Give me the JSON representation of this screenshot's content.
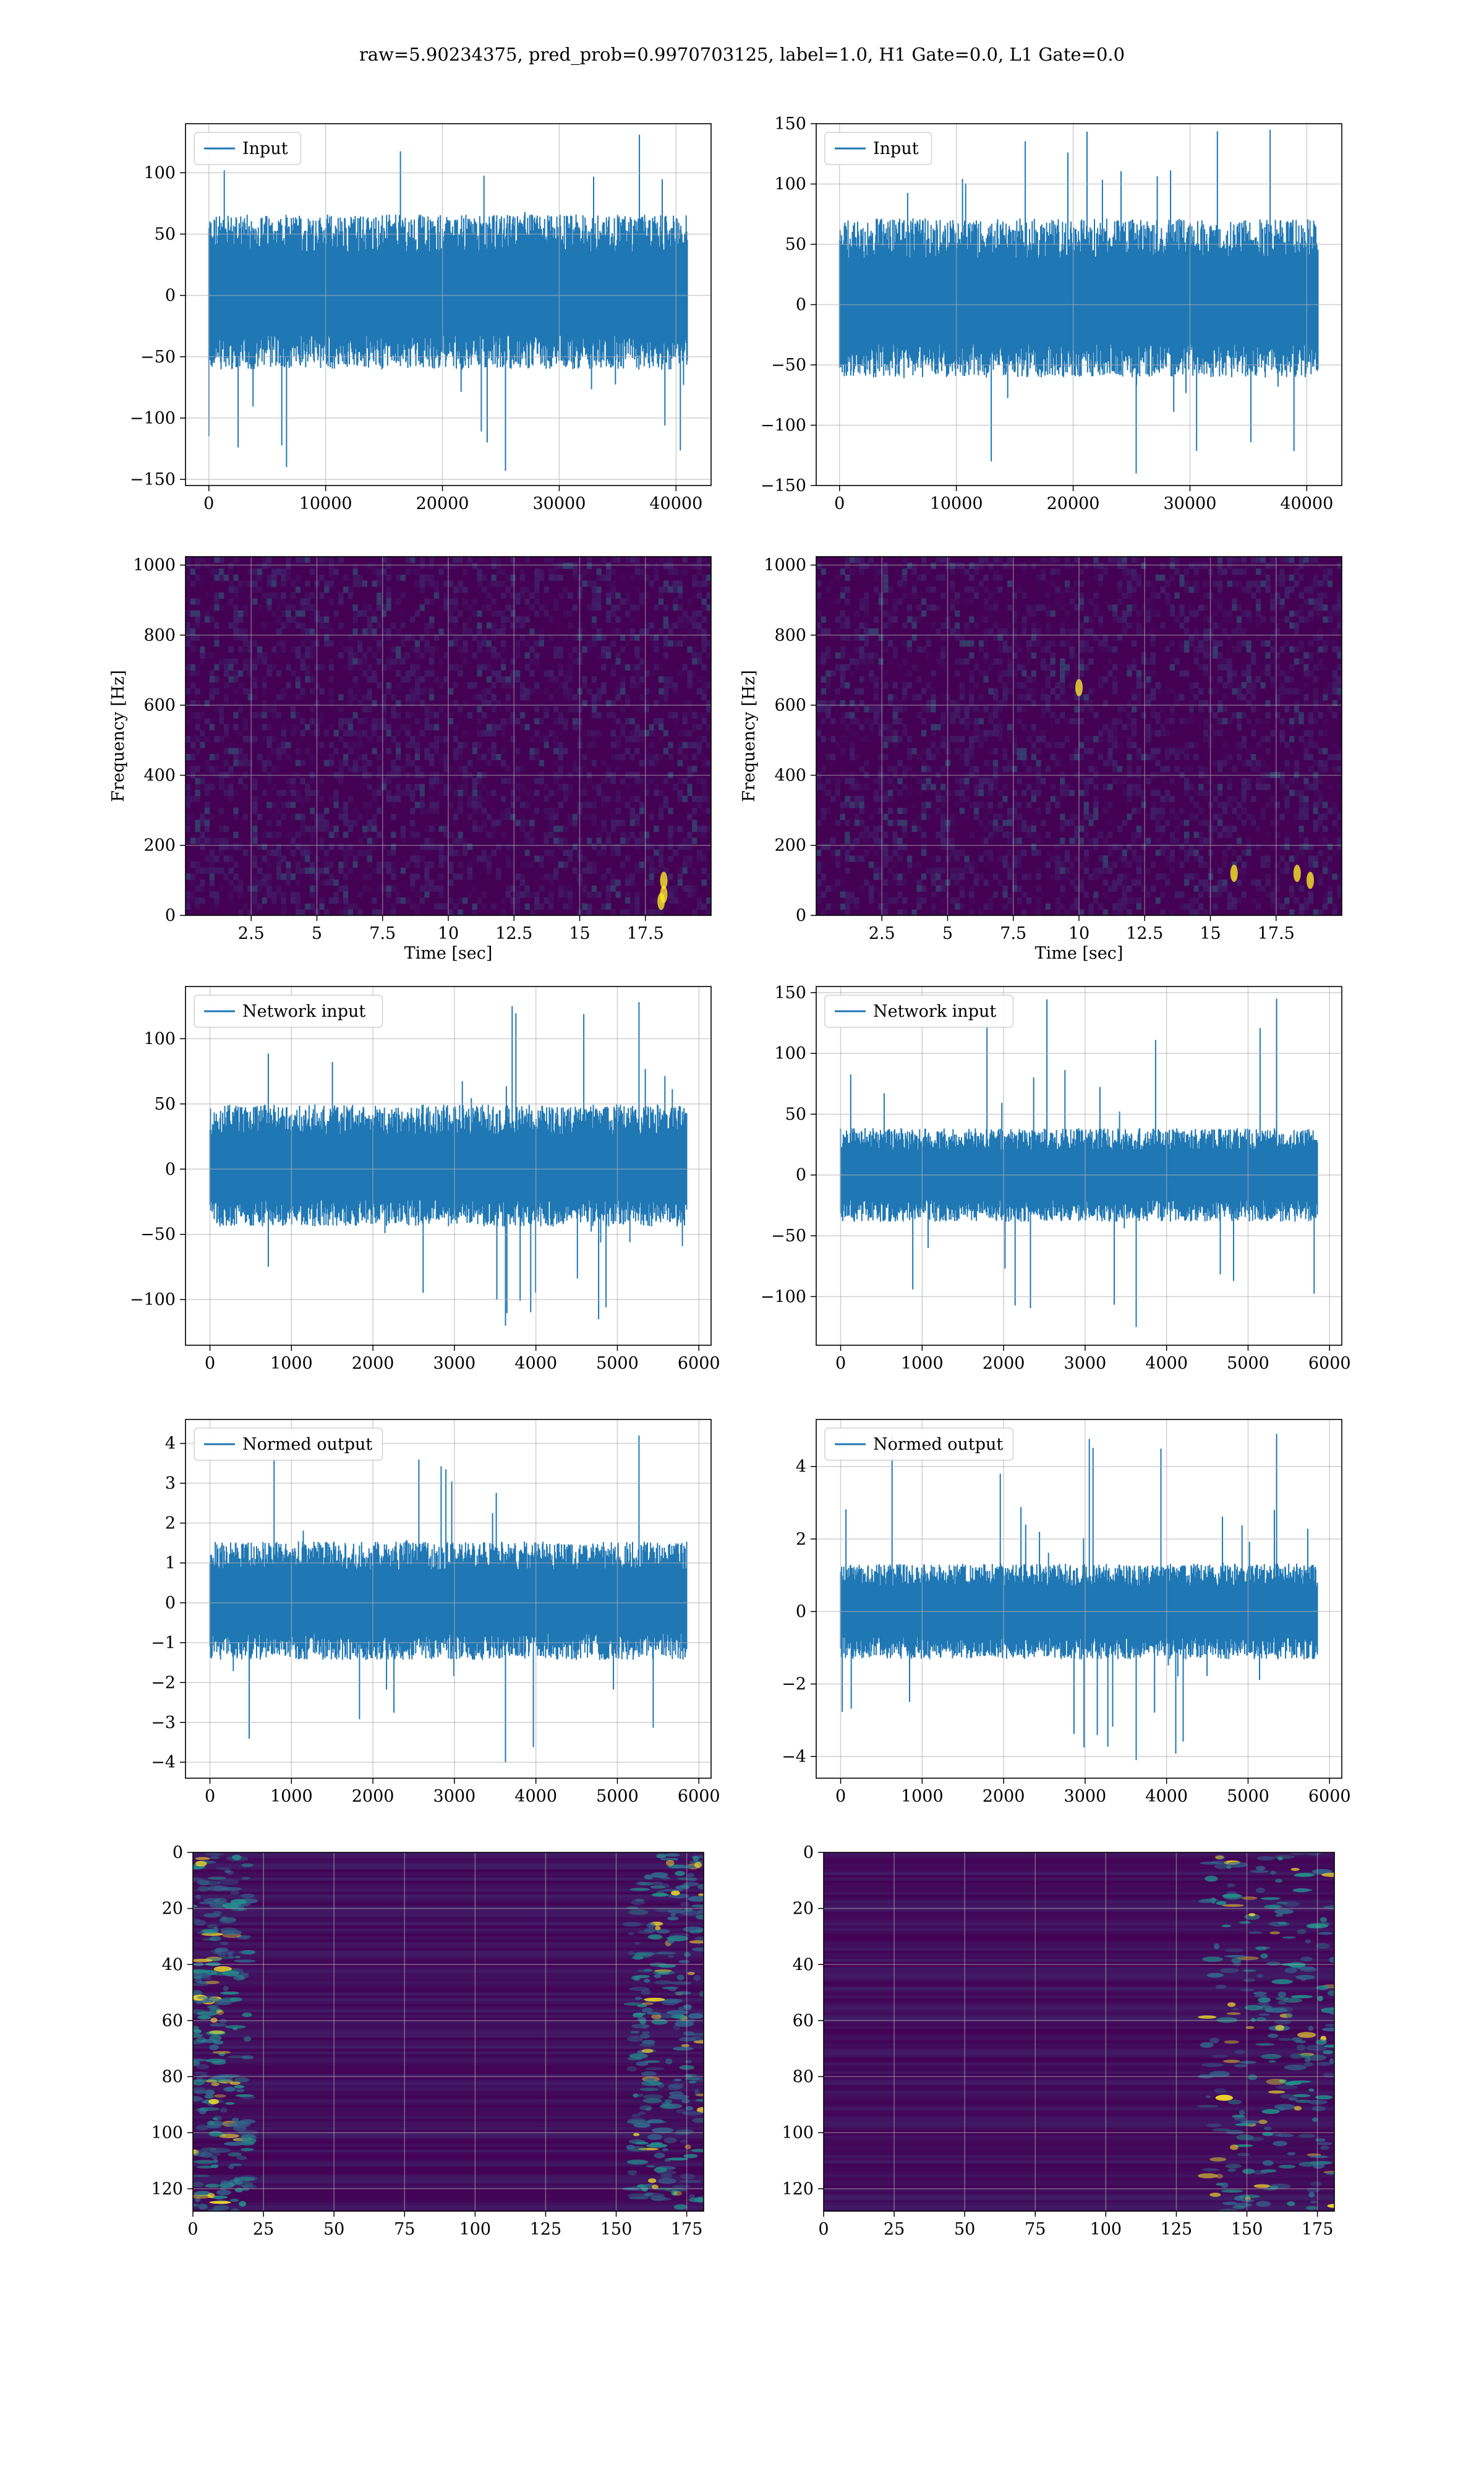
{
  "figure": {
    "suptitle": "raw=5.90234375, pred_prob=0.9970703125, label=1.0, H1 Gate=0.0, L1 Gate=0.0"
  },
  "colors": {
    "line": "#1f77b4",
    "viridis_dark": "#440154",
    "viridis_mid": "#21918c",
    "viridis_bright": "#fde725",
    "grid": "#b0b0b0"
  },
  "chart_data": [
    {
      "id": "input-h1",
      "type": "line",
      "legend": [
        "Input"
      ],
      "xlim": [
        -2000,
        43000
      ],
      "ylim": [
        -155,
        140
      ],
      "xticks": [
        0,
        10000,
        20000,
        30000,
        40000
      ],
      "yticks": [
        -150,
        -100,
        -50,
        0,
        50,
        100
      ],
      "series": [
        {
          "name": "Input",
          "x_range": [
            0,
            40960
          ],
          "band": [
            -55,
            60
          ],
          "peak_max": 131,
          "peak_min": -143
        }
      ]
    },
    {
      "id": "input-l1",
      "type": "line",
      "legend": [
        "Input"
      ],
      "xlim": [
        -2000,
        43000
      ],
      "ylim": [
        -150,
        150
      ],
      "xticks": [
        0,
        10000,
        20000,
        30000,
        40000
      ],
      "yticks": [
        -150,
        -100,
        -50,
        0,
        50,
        100,
        150
      ],
      "series": [
        {
          "name": "Input",
          "x_range": [
            0,
            40960
          ],
          "band": [
            -55,
            65
          ],
          "peak_max": 145,
          "peak_min": -140
        }
      ]
    },
    {
      "id": "spectrogram-h1",
      "type": "heatmap",
      "xlabel": "Time [sec]",
      "ylabel": "Frequency [Hz]",
      "xlim": [
        0,
        20
      ],
      "ylim": [
        0,
        1024
      ],
      "xticks": [
        2.5,
        5.0,
        7.5,
        10.0,
        12.5,
        15.0,
        17.5
      ],
      "yticks": [
        0,
        200,
        400,
        600,
        800,
        1000
      ],
      "hot_spots": [
        {
          "t": 18.2,
          "f": 60
        },
        {
          "t": 18.2,
          "f": 100
        },
        {
          "t": 18.1,
          "f": 40
        }
      ]
    },
    {
      "id": "spectrogram-l1",
      "type": "heatmap",
      "xlabel": "Time [sec]",
      "ylabel": "Frequency [Hz]",
      "xlim": [
        0,
        20
      ],
      "ylim": [
        0,
        1024
      ],
      "xticks": [
        2.5,
        5.0,
        7.5,
        10.0,
        12.5,
        15.0,
        17.5
      ],
      "yticks": [
        0,
        200,
        400,
        600,
        800,
        1000
      ],
      "hot_spots": [
        {
          "t": 18.3,
          "f": 120
        },
        {
          "t": 18.8,
          "f": 100
        },
        {
          "t": 15.9,
          "f": 120
        },
        {
          "t": 10.0,
          "f": 650
        }
      ]
    },
    {
      "id": "network-input-h1",
      "type": "line",
      "legend": [
        "Network input"
      ],
      "xlim": [
        -300,
        6150
      ],
      "ylim": [
        -135,
        140
      ],
      "xticks": [
        0,
        1000,
        2000,
        3000,
        4000,
        5000,
        6000
      ],
      "yticks": [
        -100,
        -50,
        0,
        50,
        100
      ],
      "series": [
        {
          "name": "Network input",
          "x_range": [
            0,
            5850
          ],
          "band": [
            -40,
            45
          ],
          "peak_max": 128,
          "peak_min": -120
        }
      ]
    },
    {
      "id": "network-input-l1",
      "type": "line",
      "legend": [
        "Network input"
      ],
      "xlim": [
        -300,
        6150
      ],
      "ylim": [
        -140,
        155
      ],
      "xticks": [
        0,
        1000,
        2000,
        3000,
        4000,
        5000,
        6000
      ],
      "yticks": [
        -100,
        -50,
        0,
        50,
        100,
        150
      ],
      "series": [
        {
          "name": "Network input",
          "x_range": [
            0,
            5850
          ],
          "band": [
            -35,
            35
          ],
          "peak_max": 145,
          "peak_min": -125,
          "peak_at": 5350
        }
      ]
    },
    {
      "id": "normed-output-h1",
      "type": "line",
      "legend": [
        "Normed output"
      ],
      "xlim": [
        -300,
        6150
      ],
      "ylim": [
        -4.4,
        4.6
      ],
      "xticks": [
        0,
        1000,
        2000,
        3000,
        4000,
        5000,
        6000
      ],
      "yticks": [
        -4,
        -3,
        -2,
        -1,
        0,
        1,
        2,
        3,
        4
      ],
      "series": [
        {
          "name": "Normed output",
          "x_range": [
            0,
            5850
          ],
          "band": [
            -1.3,
            1.4
          ],
          "peak_max": 4.2,
          "peak_min": -4.0
        }
      ]
    },
    {
      "id": "normed-output-l1",
      "type": "line",
      "legend": [
        "Normed output"
      ],
      "xlim": [
        -300,
        6150
      ],
      "ylim": [
        -4.6,
        5.3
      ],
      "xticks": [
        0,
        1000,
        2000,
        3000,
        4000,
        5000,
        6000
      ],
      "yticks": [
        -4,
        -2,
        0,
        2,
        4
      ],
      "series": [
        {
          "name": "Normed output",
          "x_range": [
            0,
            5850
          ],
          "band": [
            -1.2,
            1.2
          ],
          "peak_max": 4.9,
          "peak_min": -4.1,
          "peak_at": 5350
        }
      ]
    },
    {
      "id": "feature-map-h1",
      "type": "heatmap",
      "xlim": [
        0,
        181
      ],
      "ylim": [
        128,
        0
      ],
      "xticks": [
        0,
        25,
        50,
        75,
        100,
        125,
        150,
        175
      ],
      "yticks": [
        0,
        20,
        40,
        60,
        80,
        100,
        120
      ],
      "bright_columns": [
        [
          0,
          20
        ],
        [
          155,
          181
        ]
      ]
    },
    {
      "id": "feature-map-l1",
      "type": "heatmap",
      "xlim": [
        0,
        181
      ],
      "ylim": [
        128,
        0
      ],
      "xticks": [
        0,
        25,
        50,
        75,
        100,
        125,
        150,
        175
      ],
      "yticks": [
        0,
        20,
        40,
        60,
        80,
        100,
        120
      ],
      "bright_columns": [
        [
          135,
          181
        ]
      ]
    }
  ]
}
